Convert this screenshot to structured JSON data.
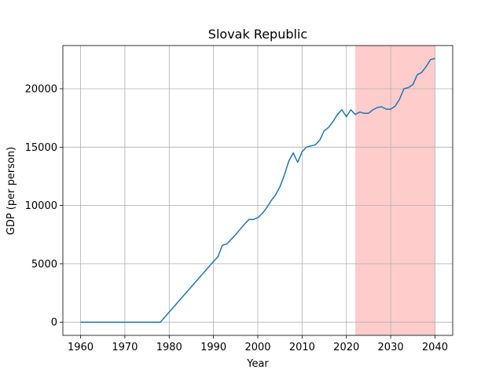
{
  "chart_data": {
    "type": "line",
    "title": "Slovak Republic",
    "xlabel": "Year",
    "ylabel": "GDP (per person)",
    "xlim": [
      1956.0,
      2044.0
    ],
    "ylim": [
      -1130,
      23700
    ],
    "xticks": [
      1960,
      1970,
      1980,
      1990,
      2000,
      2010,
      2020,
      2030,
      2040
    ],
    "yticks": [
      0,
      5000,
      10000,
      15000,
      20000
    ],
    "grid": true,
    "colors": {
      "line": "#1f77b4",
      "forecast_band": "#ff9999",
      "grid": "#b0b0b0"
    },
    "forecast_band": {
      "x_start": 2022,
      "x_end": 2040
    },
    "series": [
      {
        "x": [
          1960,
          1978,
          1990,
          1991,
          1992,
          1993,
          1994,
          1995,
          1996,
          1997,
          1998,
          1999,
          2000,
          2001,
          2002,
          2003,
          2004,
          2005,
          2006,
          2007,
          2008,
          2009,
          2010,
          2011,
          2012,
          2013,
          2014,
          2015,
          2016,
          2017,
          2018,
          2019,
          2020,
          2021,
          2022,
          2023,
          2024,
          2025,
          2026,
          2027,
          2028,
          2029,
          2030,
          2031,
          2032,
          2033,
          2034,
          2035,
          2036,
          2037,
          2038,
          2039,
          2040
        ],
        "values": [
          0,
          0,
          5200,
          5600,
          6600,
          6700,
          7100,
          7500,
          7950,
          8400,
          8800,
          8800,
          8950,
          9300,
          9800,
          10400,
          10900,
          11600,
          12600,
          13800,
          14500,
          13700,
          14600,
          15000,
          15100,
          15200,
          15600,
          16400,
          16700,
          17200,
          17800,
          18200,
          17600,
          18200,
          17800,
          18000,
          17900,
          17900,
          18200,
          18400,
          18450,
          18250,
          18250,
          18500,
          19100,
          20000,
          20100,
          20350,
          21200,
          21400,
          21900,
          22500,
          22600
        ]
      }
    ]
  }
}
